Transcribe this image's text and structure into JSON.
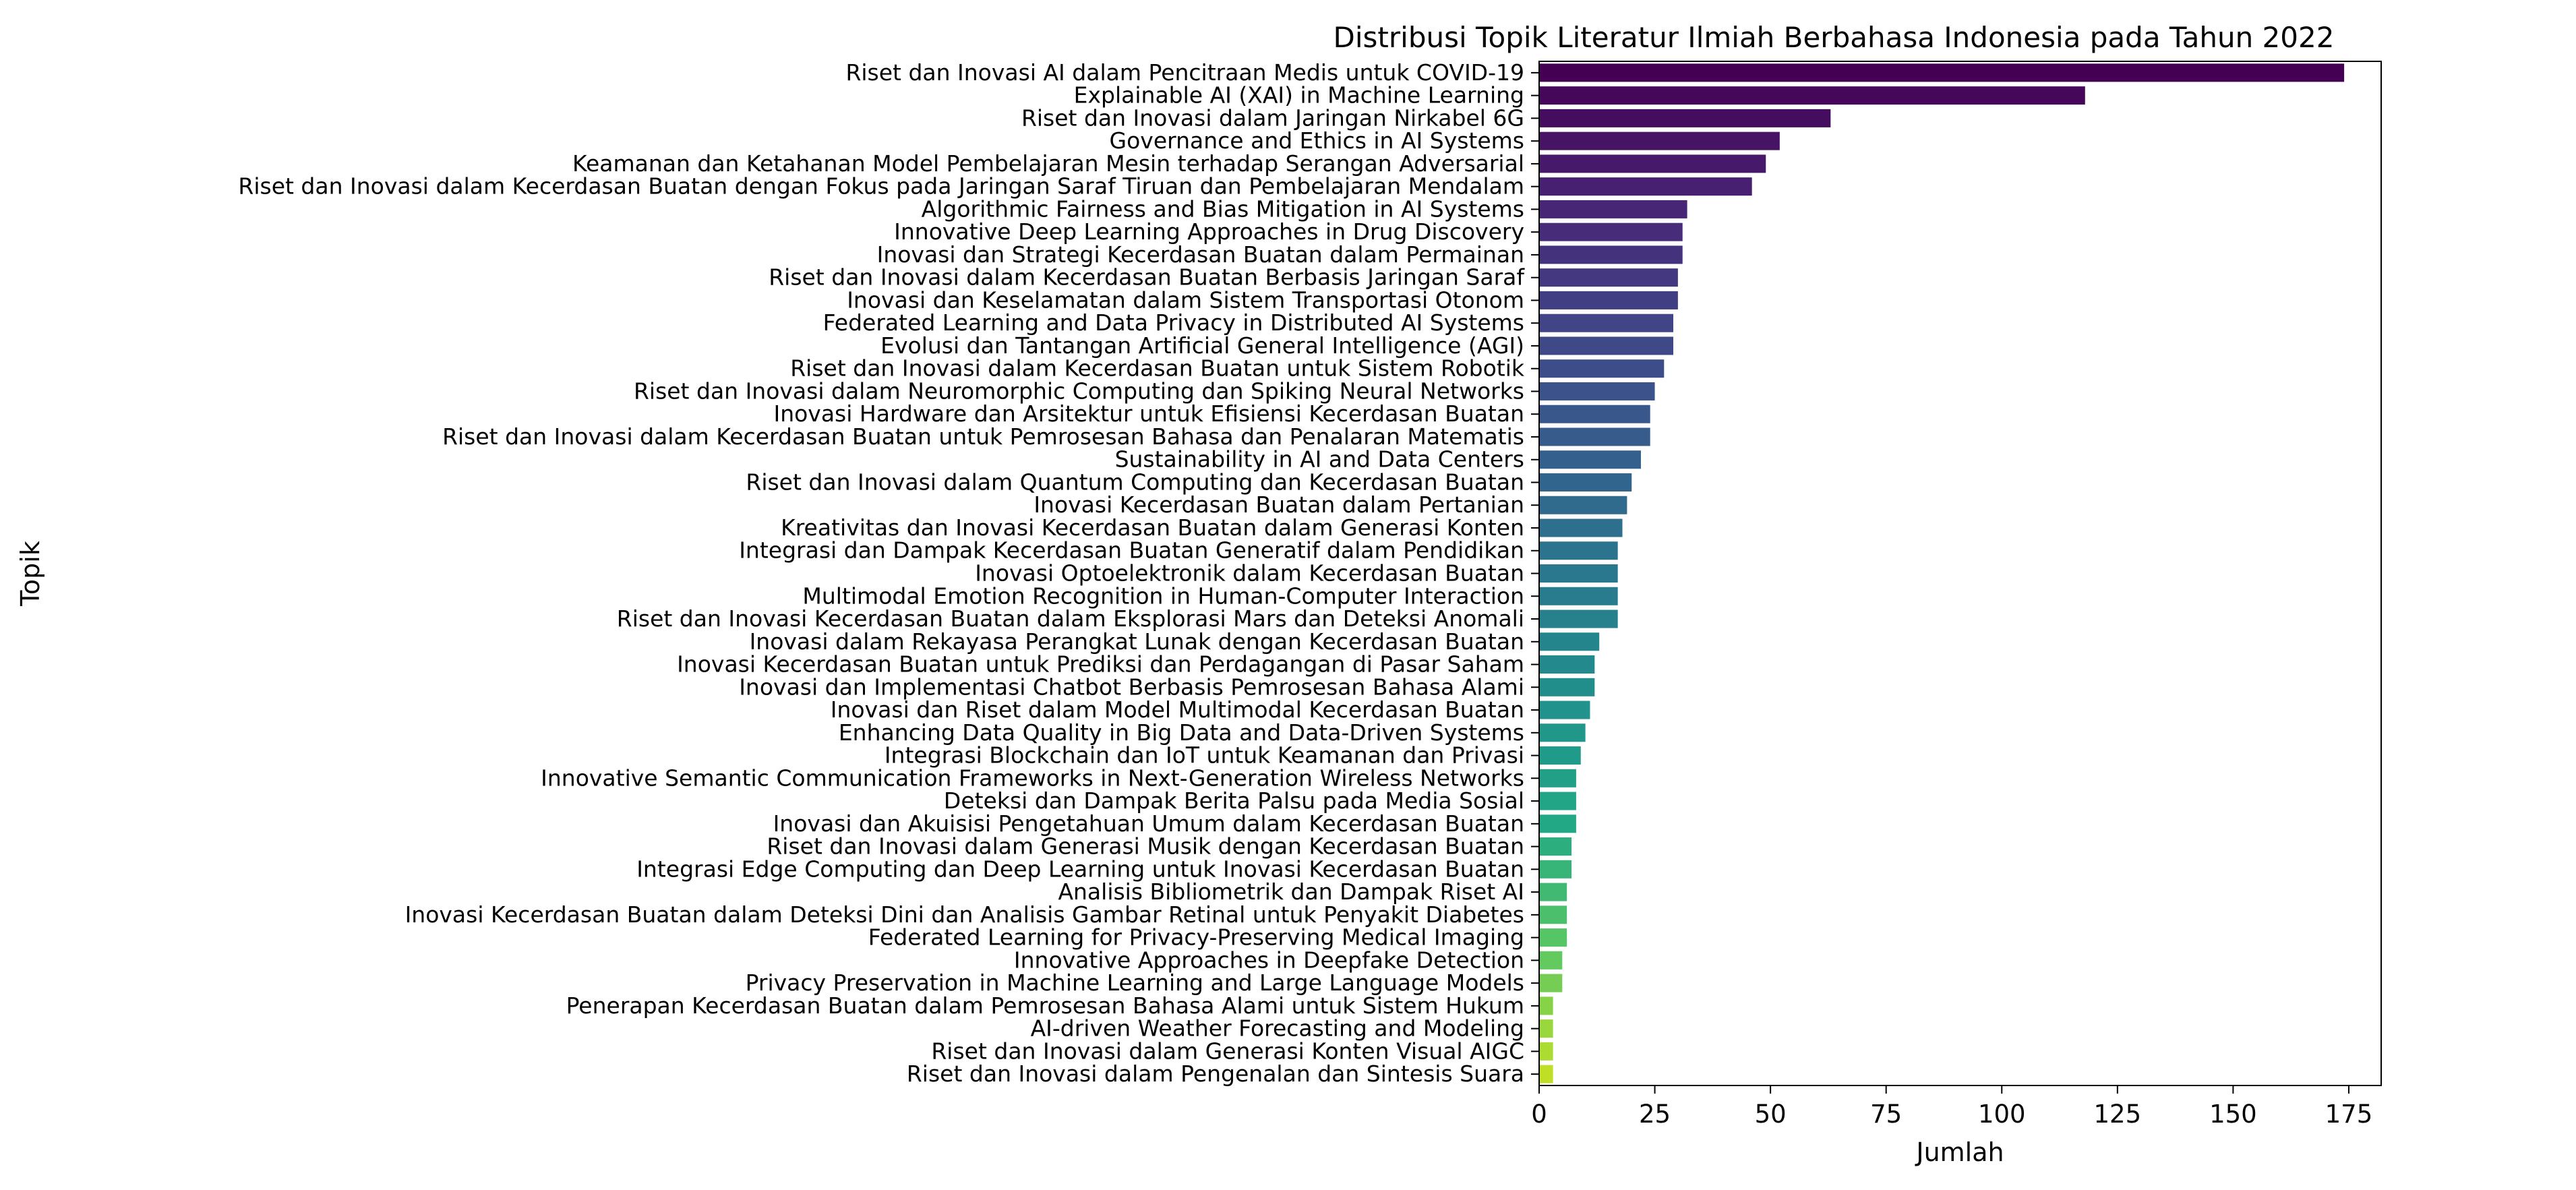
{
  "chart_data": {
    "type": "bar",
    "orientation": "horizontal",
    "title": "Distribusi Topik Literatur Ilmiah Berbahasa Indonesia pada Tahun 2022",
    "xlabel": "Jumlah",
    "ylabel": "Topik",
    "xlim": [
      0,
      182
    ],
    "xticks": [
      0,
      25,
      50,
      75,
      100,
      125,
      150,
      175
    ],
    "grid": false,
    "legend": "none",
    "colormap": "viridis",
    "categories": [
      "Riset dan Inovasi AI dalam Pencitraan Medis untuk COVID-19",
      "Explainable AI (XAI) in Machine Learning",
      "Riset dan Inovasi dalam Jaringan Nirkabel 6G",
      "Governance and Ethics in AI Systems",
      "Keamanan dan Ketahanan Model Pembelajaran Mesin terhadap Serangan Adversarial",
      "Riset dan Inovasi dalam Kecerdasan Buatan dengan Fokus pada Jaringan Saraf Tiruan dan Pembelajaran Mendalam",
      "Algorithmic Fairness and Bias Mitigation in AI Systems",
      "Innovative Deep Learning Approaches in Drug Discovery",
      "Inovasi dan Strategi Kecerdasan Buatan dalam Permainan",
      "Riset dan Inovasi dalam Kecerdasan Buatan Berbasis Jaringan Saraf",
      "Inovasi dan Keselamatan dalam Sistem Transportasi Otonom",
      "Federated Learning and Data Privacy in Distributed AI Systems",
      "Evolusi dan Tantangan Artificial General Intelligence (AGI)",
      "Riset dan Inovasi dalam Kecerdasan Buatan untuk Sistem Robotik",
      "Riset dan Inovasi dalam Neuromorphic Computing dan Spiking Neural Networks",
      "Inovasi Hardware dan Arsitektur untuk Efisiensi Kecerdasan Buatan",
      "Riset dan Inovasi dalam Kecerdasan Buatan untuk Pemrosesan Bahasa dan Penalaran Matematis",
      "Sustainability in AI and Data Centers",
      "Riset dan Inovasi dalam Quantum Computing dan Kecerdasan Buatan",
      "Inovasi Kecerdasan Buatan dalam Pertanian",
      "Kreativitas dan Inovasi Kecerdasan Buatan dalam Generasi Konten",
      "Integrasi dan Dampak Kecerdasan Buatan Generatif dalam Pendidikan",
      "Inovasi Optoelektronik dalam Kecerdasan Buatan",
      "Multimodal Emotion Recognition in Human-Computer Interaction",
      "Riset dan Inovasi Kecerdasan Buatan dalam Eksplorasi Mars dan Deteksi Anomali",
      "Inovasi dalam Rekayasa Perangkat Lunak dengan Kecerdasan Buatan",
      "Inovasi Kecerdasan Buatan untuk Prediksi dan Perdagangan di Pasar Saham",
      "Inovasi dan Implementasi Chatbot Berbasis Pemrosesan Bahasa Alami",
      "Inovasi dan Riset dalam Model Multimodal Kecerdasan Buatan",
      "Enhancing Data Quality in Big Data and Data-Driven Systems",
      "Integrasi Blockchain dan IoT untuk Keamanan dan Privasi",
      "Innovative Semantic Communication Frameworks in Next-Generation Wireless Networks",
      "Deteksi dan Dampak Berita Palsu pada Media Sosial",
      "Inovasi dan Akuisisi Pengetahuan Umum dalam Kecerdasan Buatan",
      "Riset dan Inovasi dalam Generasi Musik dengan Kecerdasan Buatan",
      "Integrasi Edge Computing dan Deep Learning untuk Inovasi Kecerdasan Buatan",
      "Analisis Bibliometrik dan Dampak Riset AI",
      "Inovasi Kecerdasan Buatan dalam Deteksi Dini dan Analisis Gambar Retinal untuk Penyakit Diabetes",
      "Federated Learning for Privacy-Preserving Medical Imaging",
      "Innovative Approaches in Deepfake Detection",
      "Privacy Preservation in Machine Learning and Large Language Models",
      "Penerapan Kecerdasan Buatan dalam Pemrosesan Bahasa Alami untuk Sistem Hukum",
      "AI-driven Weather Forecasting and Modeling",
      "Riset dan Inovasi dalam Generasi Konten Visual AIGC",
      "Riset dan Inovasi dalam Pengenalan dan Sintesis Suara"
    ],
    "values": [
      174,
      118,
      63,
      52,
      49,
      46,
      32,
      31,
      31,
      30,
      30,
      29,
      29,
      27,
      25,
      24,
      24,
      22,
      20,
      19,
      18,
      17,
      17,
      17,
      17,
      13,
      12,
      12,
      11,
      10,
      9,
      8,
      8,
      8,
      7,
      7,
      6,
      6,
      6,
      5,
      5,
      3,
      3,
      3,
      3
    ]
  }
}
